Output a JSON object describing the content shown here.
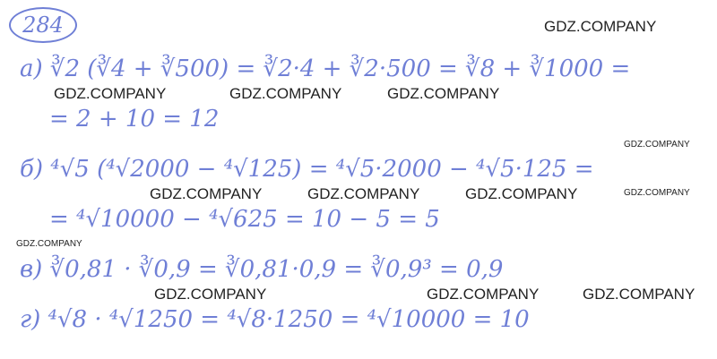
{
  "problem_number": "284",
  "lines": [
    "а) ∛2 (∛4 + ∛500) = ∛2·4 + ∛2·500 = ∛8 + ∛1000 =",
    "= 2 + 10 = 12",
    "б) ⁴√5 (⁴√2000 − ⁴√125) = ⁴√5·2000 − ⁴√5·125 =",
    "= ⁴√10000 − ⁴√625 = 10 − 5 = 5",
    "в) ∛0,81 · ∛0,9 = ∛0,81·0,9 = ∛0,9³ = 0,9",
    "г) ⁴√8 · ⁴√1250 = ⁴√8·1250 = ⁴√10000 = 10"
  ],
  "watermark": "GDZ.COMPANY",
  "ink_color": "#6f7fd6"
}
